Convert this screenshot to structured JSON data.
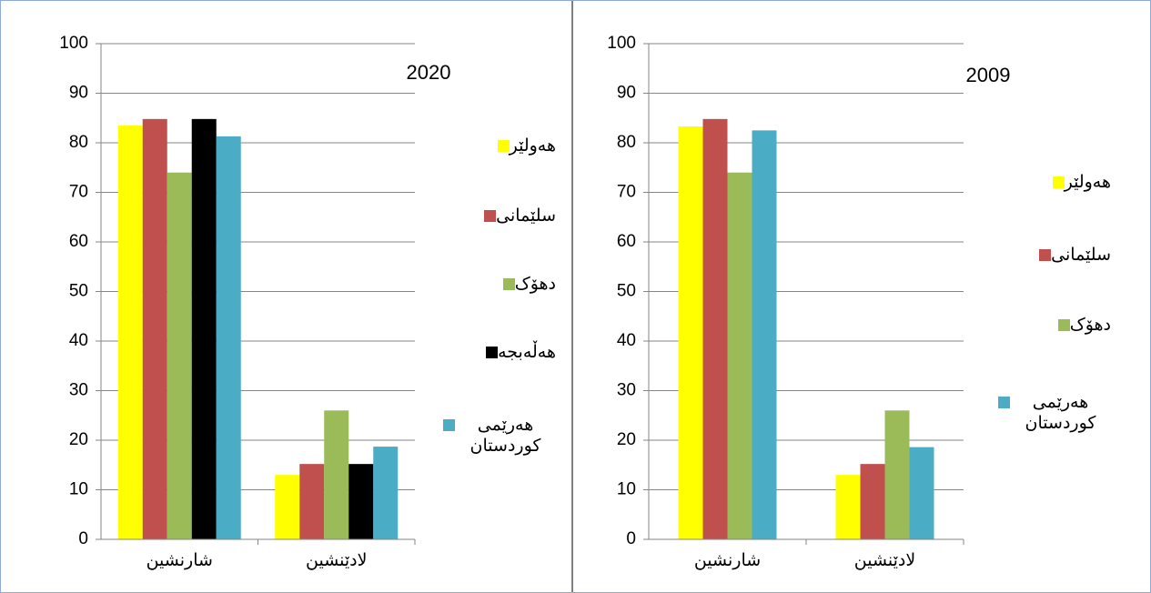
{
  "chart_data": [
    {
      "type": "bar",
      "title": "2020",
      "categories": [
        "شارنشین",
        "لادێنشین"
      ],
      "series": [
        {
          "name": "هەولێر",
          "color": "#ffff00",
          "values": [
            83.5,
            13
          ]
        },
        {
          "name": "سلێمانی",
          "color": "#c0504d",
          "values": [
            84.8,
            15.2
          ]
        },
        {
          "name": "دهۆک",
          "color": "#9bbb59",
          "values": [
            74,
            26
          ]
        },
        {
          "name": "هەڵەبجە",
          "color": "#000000",
          "values": [
            84.8,
            15.2
          ]
        },
        {
          "name": "هەرێمی کوردستان",
          "color": "#4bacc6",
          "values": [
            81.3,
            18.7
          ]
        }
      ],
      "ylim": [
        0,
        100
      ],
      "yticks": [
        0,
        10,
        20,
        30,
        40,
        50,
        60,
        70,
        80,
        90,
        100
      ],
      "grid": true
    },
    {
      "type": "bar",
      "title": "2009",
      "categories": [
        "شارنشین",
        "لادێنشین"
      ],
      "series": [
        {
          "name": "هەولێر",
          "color": "#ffff00",
          "values": [
            83.3,
            13
          ]
        },
        {
          "name": "سلێمانی",
          "color": "#c0504d",
          "values": [
            84.8,
            15.2
          ]
        },
        {
          "name": "دهۆک",
          "color": "#9bbb59",
          "values": [
            74,
            26
          ]
        },
        {
          "name": "هەرێمی کوردستان",
          "color": "#4bacc6",
          "values": [
            82.5,
            18.6
          ]
        }
      ],
      "ylim": [
        0,
        100
      ],
      "yticks": [
        0,
        10,
        20,
        30,
        40,
        50,
        60,
        70,
        80,
        90,
        100
      ],
      "grid": true
    }
  ]
}
